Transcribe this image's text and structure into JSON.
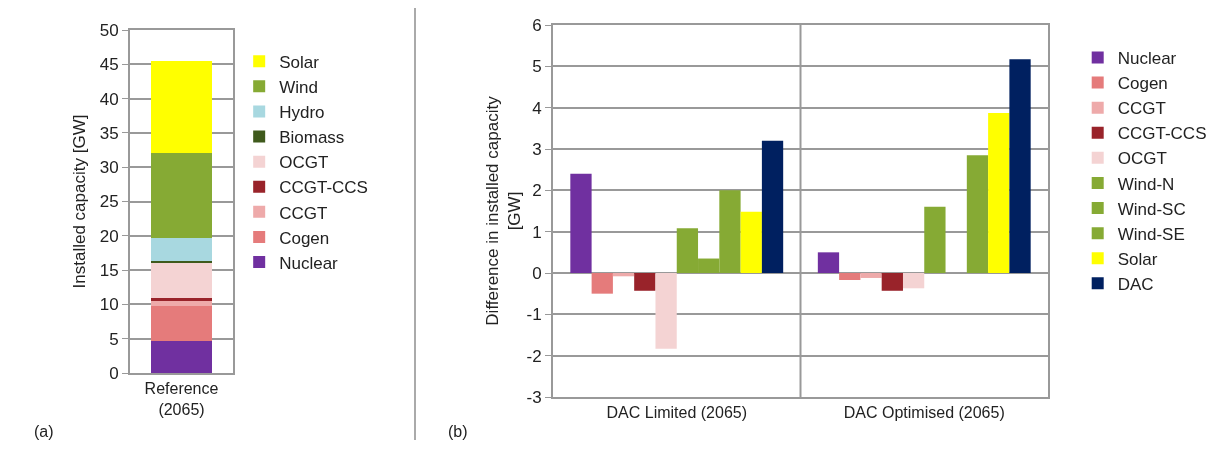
{
  "chart_data": [
    {
      "type": "bar",
      "stacked": true,
      "categories": [
        "Reference\n(2065)"
      ],
      "ylabel": "Installed capacity [GW]",
      "ylim": [
        0,
        50
      ],
      "yticks": [
        0,
        5,
        10,
        15,
        20,
        25,
        30,
        35,
        40,
        45,
        50
      ],
      "grid": "y",
      "legend": "right",
      "annotations": [
        "(a)"
      ],
      "series": [
        {
          "name": "Nuclear",
          "color": "#7030a0",
          "values": [
            4.7
          ]
        },
        {
          "name": "Cogen",
          "color": "#e57b7b",
          "values": [
            5.1
          ]
        },
        {
          "name": "CCGT",
          "color": "#eeaaaa",
          "values": [
            0.7
          ]
        },
        {
          "name": "CCGT-CCS",
          "color": "#99232a",
          "values": [
            0.4
          ]
        },
        {
          "name": "OCGT",
          "color": "#f4d3d3",
          "values": [
            5.1
          ]
        },
        {
          "name": "Biomass",
          "color": "#3f5a1c",
          "values": [
            0.3
          ]
        },
        {
          "name": "Hydro",
          "color": "#a8d8e0",
          "values": [
            3.4
          ]
        },
        {
          "name": "Wind",
          "color": "#86aa34",
          "values": [
            12.3
          ]
        },
        {
          "name": "Solar",
          "color": "#ffff00",
          "values": [
            13.5
          ]
        }
      ]
    },
    {
      "type": "bar",
      "categories": [
        "DAC Limited (2065)",
        "DAC Optimised (2065)"
      ],
      "ylabel": "Difference in installed capacity\n[GW]",
      "ylim": [
        -3,
        6
      ],
      "yticks": [
        -3,
        -2,
        -1,
        0,
        1,
        2,
        3,
        4,
        5,
        6
      ],
      "grid": true,
      "legend": "right",
      "annotations": [
        "(b)"
      ],
      "series": [
        {
          "name": "Nuclear",
          "color": "#7030a0",
          "values": [
            2.4,
            0.5
          ]
        },
        {
          "name": "Cogen",
          "color": "#e57b7b",
          "values": [
            -0.5,
            -0.17
          ]
        },
        {
          "name": "CCGT",
          "color": "#eeaaaa",
          "values": [
            -0.08,
            -0.12
          ]
        },
        {
          "name": "CCGT-CCS",
          "color": "#99232a",
          "values": [
            -0.43,
            -0.43
          ]
        },
        {
          "name": "OCGT",
          "color": "#f4d3d3",
          "values": [
            -1.83,
            -0.37
          ]
        },
        {
          "name": "Wind-N",
          "color": "#86aa34",
          "values": [
            1.08,
            1.6
          ]
        },
        {
          "name": "Wind-SC",
          "color": "#86aa34",
          "values": [
            0.35,
            0
          ]
        },
        {
          "name": "Wind-SE",
          "color": "#86aa34",
          "values": [
            2.0,
            2.85
          ]
        },
        {
          "name": "Solar",
          "color": "#ffff00",
          "values": [
            1.48,
            3.87
          ]
        },
        {
          "name": "DAC",
          "color": "#002060",
          "values": [
            3.2,
            5.17
          ]
        }
      ]
    }
  ]
}
